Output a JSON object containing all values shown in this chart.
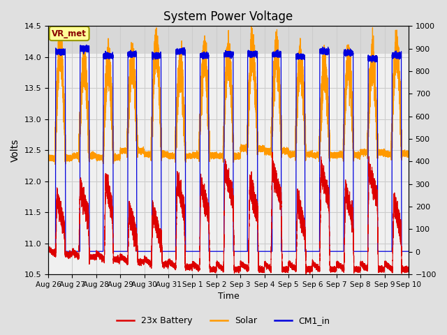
{
  "title": "System Power Voltage",
  "xlabel": "Time",
  "ylabel": "Volts",
  "ylim_left": [
    10.5,
    14.5
  ],
  "ylim_right": [
    -100,
    1000
  ],
  "yticks_left": [
    10.5,
    11.0,
    11.5,
    12.0,
    12.5,
    13.0,
    13.5,
    14.0,
    14.5
  ],
  "yticks_right": [
    -100,
    0,
    100,
    200,
    300,
    400,
    500,
    600,
    700,
    800,
    900,
    1000
  ],
  "fig_bg_color": "#e0e0e0",
  "axes_bg_color": "#f0f0f0",
  "grid_color": "#cccccc",
  "annotation_text": "VR_met",
  "annotation_box_facecolor": "#ffff99",
  "annotation_box_edgecolor": "#999900",
  "annotation_text_color": "#880000",
  "legend_items": [
    "23x Battery",
    "Solar",
    "CM1_in"
  ],
  "color_battery": "#dd0000",
  "color_solar": "#ff9900",
  "color_cm1": "#0000dd",
  "date_labels": [
    "Aug 26",
    "Aug 27",
    "Aug 28",
    "Aug 29",
    "Aug 30",
    "Aug 31",
    "Sep 1",
    "Sep 2",
    "Sep 3",
    "Sep 4",
    "Sep 5",
    "Sep 6",
    "Sep 7",
    "Sep 8",
    "Sep 9",
    "Sep 10"
  ],
  "n_days": 15
}
